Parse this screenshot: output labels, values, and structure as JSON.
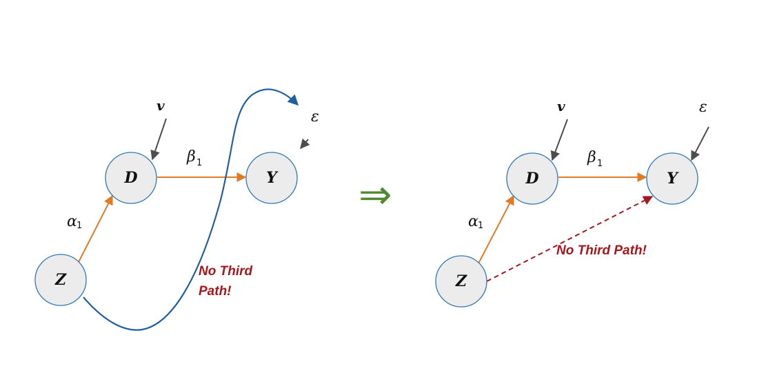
{
  "colors": {
    "causal_edge": "#e07a25",
    "noise_edge": "#4d4d4d",
    "backdoor_curve": "#1f5fa0",
    "dashed_edge": "#a6161c",
    "node_fill": "#ececec",
    "node_border": "#2e75b6",
    "implies_arrow": "#4e8a2f",
    "note_text": "#a6161c"
  },
  "implies_symbol": "⇒",
  "left_diagram": {
    "nodes": {
      "z": "Z",
      "d": "D",
      "y": "Y"
    },
    "labels": {
      "alpha": "α",
      "alpha_sub": "1",
      "beta": "β",
      "beta_sub": "1",
      "v": "v",
      "epsilon": "ε"
    },
    "note_line1": "No Third",
    "note_line2": "Path!"
  },
  "right_diagram": {
    "nodes": {
      "z": "Z",
      "d": "D",
      "y": "Y"
    },
    "labels": {
      "alpha": "α",
      "alpha_sub": "1",
      "beta": "β",
      "beta_sub": "1",
      "v": "v",
      "epsilon": "ε"
    },
    "note": "No Third Path!"
  }
}
